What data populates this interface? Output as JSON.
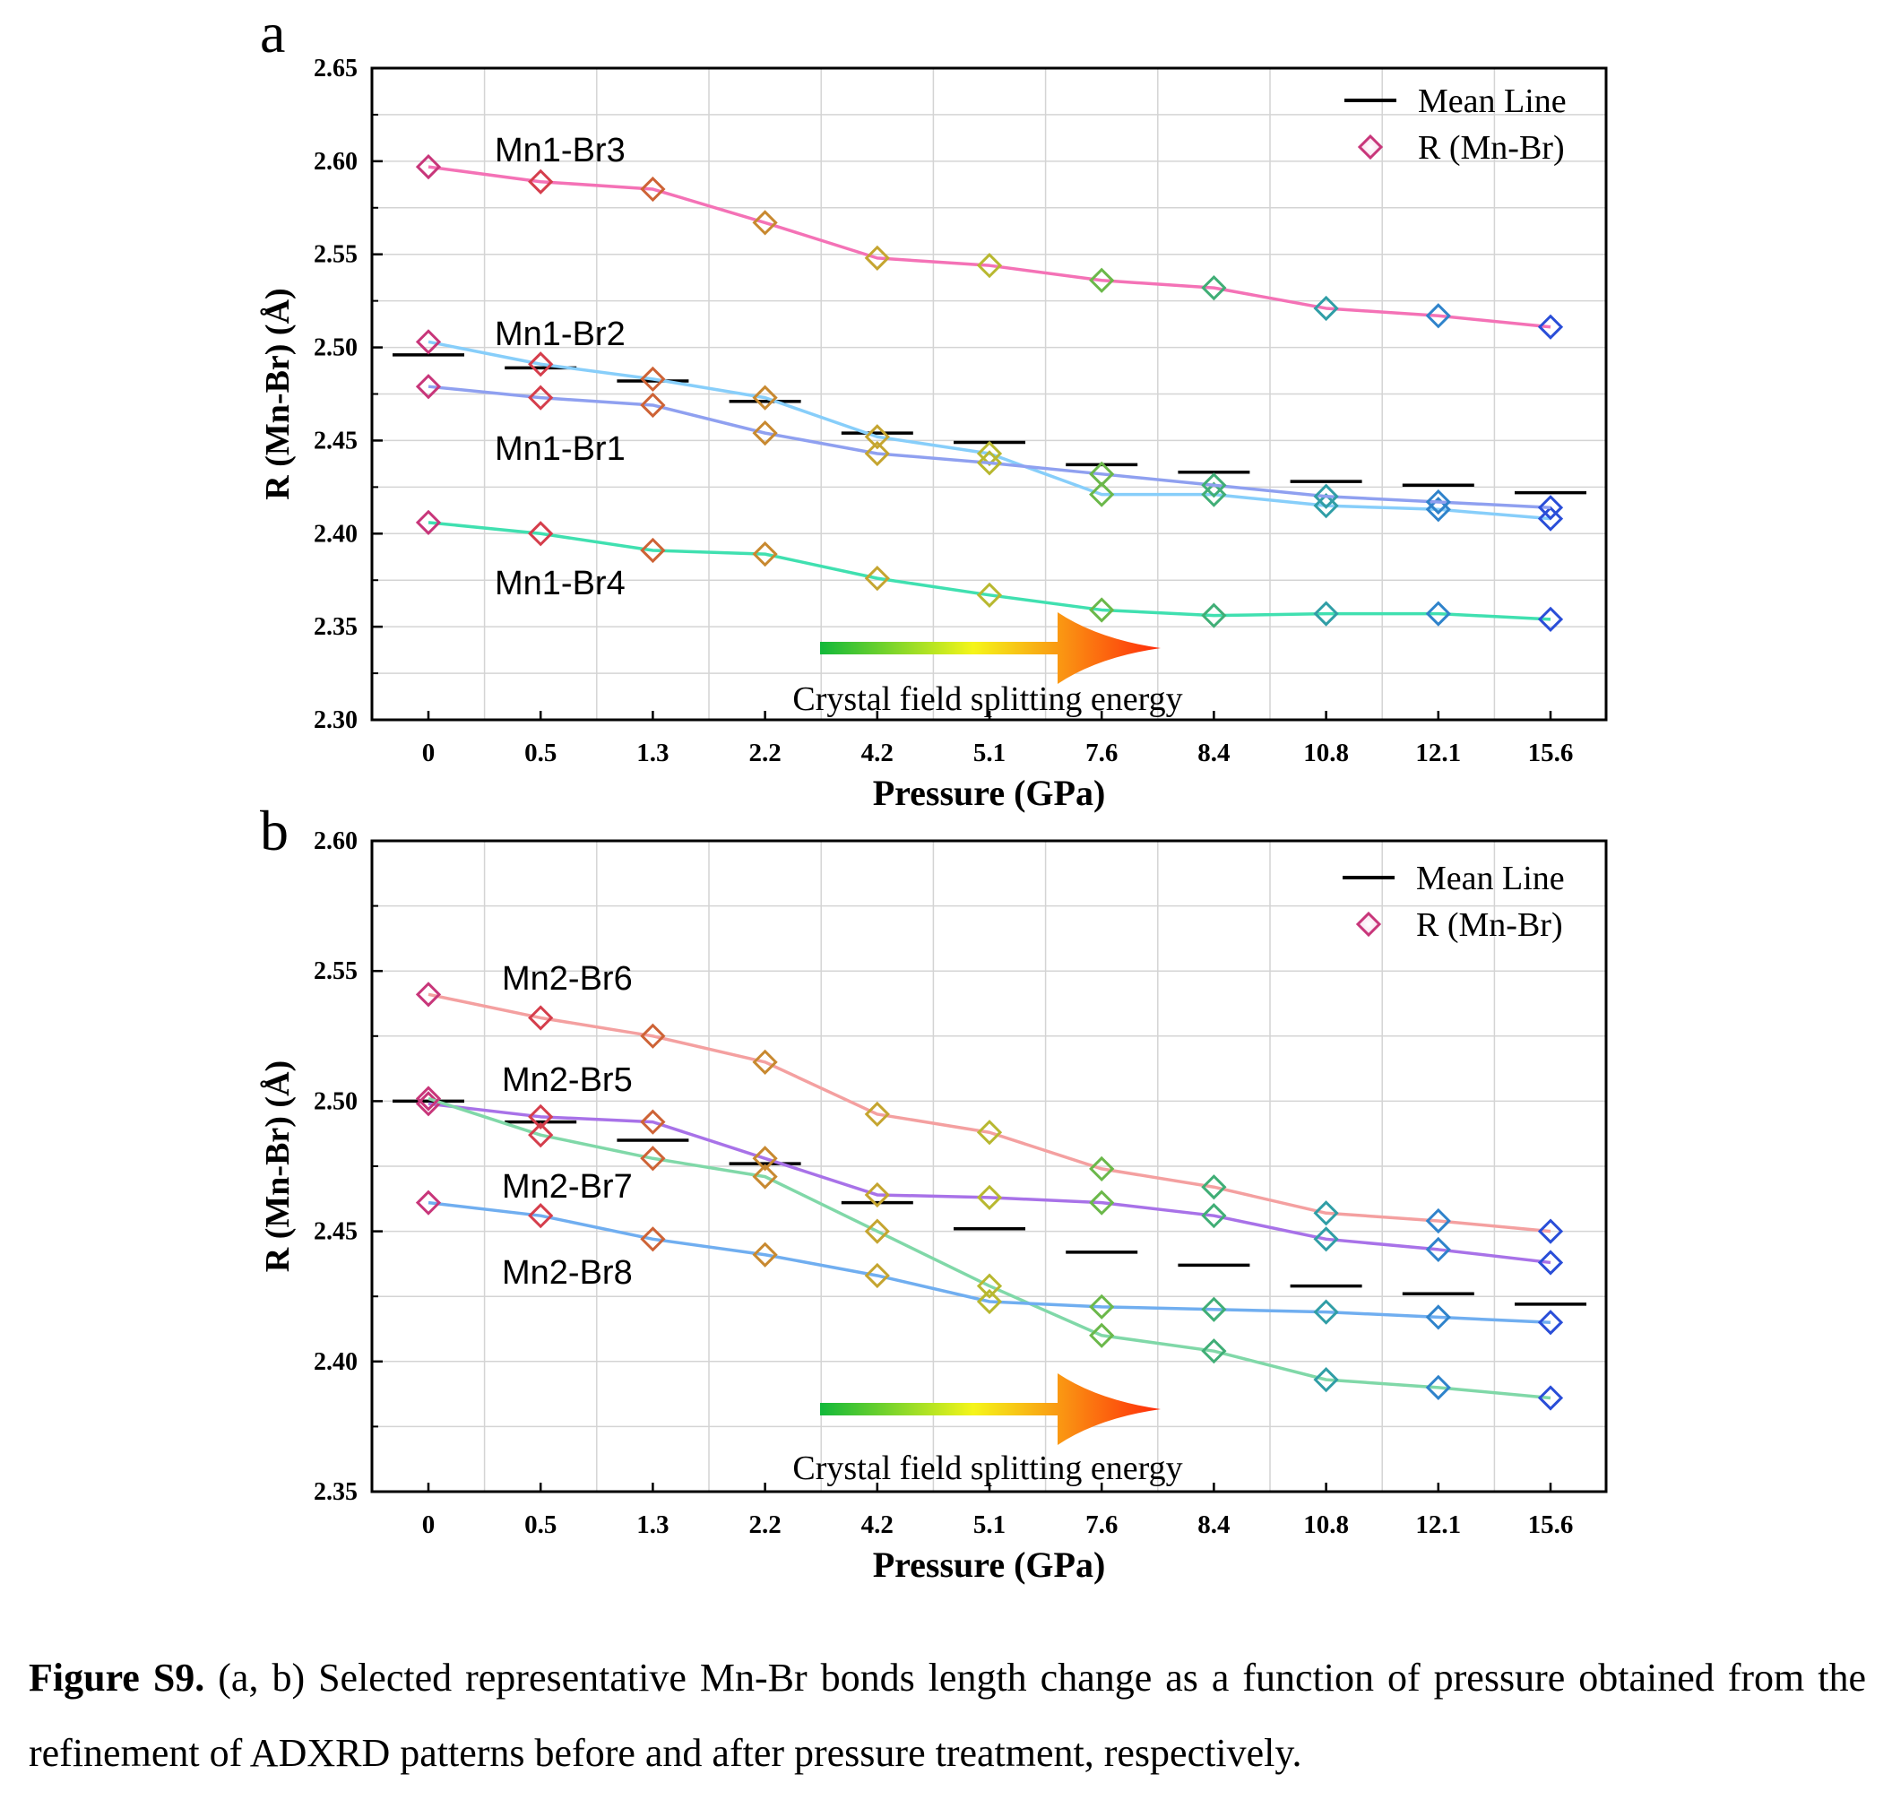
{
  "chart_data": [
    {
      "type": "line",
      "panel_label": "a",
      "xlabel": "Pressure (GPa)",
      "ylabel": "R (Mn-Br) (Å)",
      "categories": [
        "0",
        "0.5",
        "1.3",
        "2.2",
        "4.2",
        "5.1",
        "7.6",
        "8.4",
        "10.8",
        "12.1",
        "15.6"
      ],
      "ylim": [
        2.3,
        2.65
      ],
      "yticks": [
        "2.30",
        "2.35",
        "2.40",
        "2.45",
        "2.50",
        "2.55",
        "2.60",
        "2.65"
      ],
      "grid": true,
      "legend": {
        "placement": "top-right",
        "entries": [
          "Mean Line",
          "R (Mn-Br)"
        ]
      },
      "series": [
        {
          "name": "Mn1-Br3",
          "color": "#f472b6",
          "values": [
            2.597,
            2.589,
            2.585,
            2.567,
            2.548,
            2.544,
            2.536,
            2.532,
            2.521,
            2.517,
            2.511
          ]
        },
        {
          "name": "Mn1-Br2",
          "color": "#87cefa",
          "values": [
            2.503,
            2.491,
            2.483,
            2.473,
            2.452,
            2.443,
            2.421,
            2.421,
            2.415,
            2.413,
            2.408
          ]
        },
        {
          "name": "Mn1-Br1",
          "color": "#8fa0f0",
          "values": [
            2.479,
            2.473,
            2.469,
            2.454,
            2.443,
            2.438,
            2.432,
            2.426,
            2.42,
            2.417,
            2.414
          ]
        },
        {
          "name": "Mn1-Br4",
          "color": "#40e0b0",
          "values": [
            2.406,
            2.4,
            2.391,
            2.389,
            2.376,
            2.367,
            2.359,
            2.356,
            2.357,
            2.357,
            2.354
          ]
        }
      ],
      "mean_line": {
        "name": "Mean Line",
        "values": [
          2.496,
          2.489,
          2.482,
          2.471,
          2.454,
          2.449,
          2.437,
          2.433,
          2.428,
          2.426,
          2.422
        ]
      },
      "annotation": "Crystal field splitting energy"
    },
    {
      "type": "line",
      "panel_label": "b",
      "xlabel": "Pressure (GPa)",
      "ylabel": "R (Mn-Br) (Å)",
      "categories": [
        "0",
        "0.5",
        "1.3",
        "2.2",
        "4.2",
        "5.1",
        "7.6",
        "8.4",
        "10.8",
        "12.1",
        "15.6"
      ],
      "ylim": [
        2.35,
        2.6
      ],
      "yticks": [
        "2.35",
        "2.40",
        "2.45",
        "2.50",
        "2.55",
        "2.60"
      ],
      "grid": true,
      "legend": {
        "placement": "top-right",
        "entries": [
          "Mean Line",
          "R (Mn-Br)"
        ]
      },
      "series": [
        {
          "name": "Mn2-Br6",
          "color": "#f4a0a0",
          "values": [
            2.541,
            2.532,
            2.525,
            2.515,
            2.495,
            2.488,
            2.474,
            2.467,
            2.457,
            2.454,
            2.45
          ]
        },
        {
          "name": "Mn2-Br5",
          "color": "#a872e8",
          "values": [
            2.499,
            2.494,
            2.492,
            2.478,
            2.464,
            2.463,
            2.461,
            2.456,
            2.447,
            2.443,
            2.438
          ]
        },
        {
          "name": "Mn2-Br7",
          "color": "#80d8a8",
          "values": [
            2.501,
            2.487,
            2.478,
            2.471,
            2.45,
            2.429,
            2.41,
            2.404,
            2.393,
            2.39,
            2.386
          ]
        },
        {
          "name": "Mn2-Br8",
          "color": "#70aef0",
          "values": [
            2.461,
            2.456,
            2.447,
            2.441,
            2.433,
            2.423,
            2.421,
            2.42,
            2.419,
            2.417,
            2.415
          ]
        }
      ],
      "mean_line": {
        "name": "Mean Line",
        "values": [
          2.5,
          2.492,
          2.485,
          2.476,
          2.461,
          2.451,
          2.442,
          2.437,
          2.429,
          2.426,
          2.422
        ]
      },
      "annotation": "Crystal field splitting energy"
    }
  ],
  "caption": {
    "label": "Figure S9.",
    "text": " (a, b) Selected representative Mn-Br bonds length change as a function of pressure obtained from the refinement of ADXRD patterns before and after pressure treatment, respectively."
  }
}
